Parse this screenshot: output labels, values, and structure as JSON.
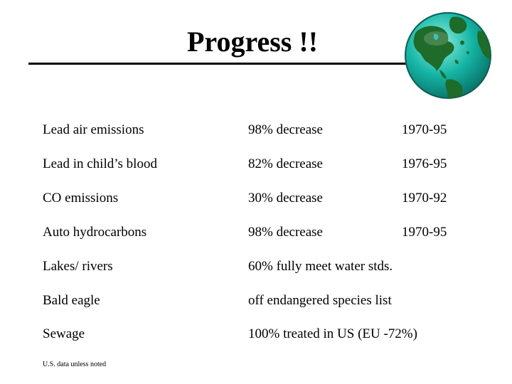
{
  "slide": {
    "title": "Progress !!",
    "footnote": "U.S. data unless noted"
  },
  "rows": [
    {
      "item": "Lead air emissions",
      "result": "98% decrease",
      "period": "1970-95"
    },
    {
      "item": "Lead in child’s blood",
      "result": "82% decrease",
      "period": "1976-95"
    },
    {
      "item": "CO emissions",
      "result": "30% decrease",
      "period": "1970-92"
    },
    {
      "item": "Auto hydrocarbons",
      "result": "98% decrease",
      "period": "1970-95"
    },
    {
      "item": "Lakes/ rivers",
      "result": "60% fully meet water stds.",
      "period": ""
    },
    {
      "item": "Bald eagle",
      "result": "off endangered species list",
      "period": ""
    },
    {
      "item": "Sewage",
      "result": "100% treated in US (EU -72%)",
      "period": ""
    }
  ],
  "colors": {
    "ocean": "#14b4a4",
    "land": "#1e6b2a"
  },
  "icons": {
    "globe": "globe-icon"
  }
}
